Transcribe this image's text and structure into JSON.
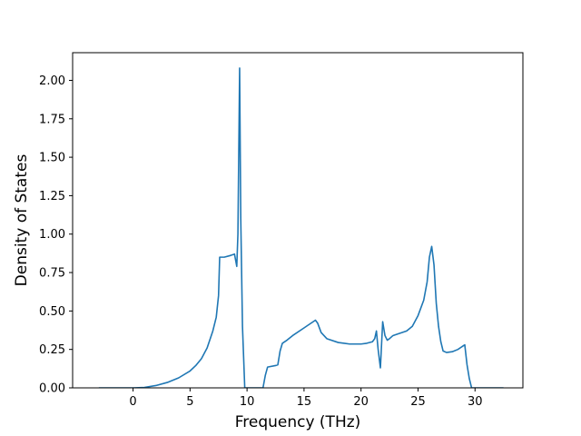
{
  "chart_data": {
    "type": "line",
    "title": "",
    "xlabel": "Frequency (THz)",
    "ylabel": "Density of States",
    "xlim": [
      -5.3,
      34.2
    ],
    "ylim": [
      0.0,
      2.18
    ],
    "xticks": [
      0,
      5,
      10,
      15,
      20,
      25,
      30
    ],
    "xtick_labels": [
      "0",
      "5",
      "10",
      "15",
      "20",
      "25",
      "30"
    ],
    "yticks": [
      0.0,
      0.25,
      0.5,
      0.75,
      1.0,
      1.25,
      1.5,
      1.75,
      2.0
    ],
    "ytick_labels": [
      "0.00",
      "0.25",
      "0.50",
      "0.75",
      "1.00",
      "1.25",
      "1.50",
      "1.75",
      "2.00"
    ],
    "grid": false,
    "legend": "none",
    "series": [
      {
        "color": "#1f77b4",
        "x": [
          -3.0,
          -1.0,
          0.0,
          1.0,
          2.0,
          3.0,
          4.0,
          5.0,
          5.5,
          6.0,
          6.5,
          7.0,
          7.3,
          7.5,
          7.6,
          8.0,
          8.5,
          8.9,
          9.1,
          9.2,
          9.35,
          9.45,
          9.6,
          9.8,
          10.0,
          11.0,
          11.4,
          11.6,
          11.8,
          12.5,
          12.7,
          12.9,
          13.1,
          13.5,
          14.0,
          15.0,
          15.5,
          16.0,
          16.2,
          16.5,
          17.0,
          18.0,
          19.0,
          20.0,
          20.5,
          21.0,
          21.2,
          21.35,
          21.5,
          21.7,
          21.9,
          22.1,
          22.3,
          22.5,
          22.8,
          23.0,
          24.0,
          24.5,
          25.0,
          25.5,
          25.8,
          26.0,
          26.2,
          26.4,
          26.6,
          26.8,
          27.0,
          27.2,
          27.5,
          28.0,
          28.5,
          29.0,
          29.1,
          29.3,
          29.5,
          29.7,
          30.0,
          31.0,
          32.5
        ],
        "y": [
          0.0,
          0.0,
          0.0,
          0.003,
          0.015,
          0.035,
          0.065,
          0.11,
          0.145,
          0.19,
          0.26,
          0.37,
          0.46,
          0.6,
          0.85,
          0.85,
          0.86,
          0.87,
          0.79,
          1.0,
          2.08,
          1.1,
          0.4,
          0.0,
          0.0,
          0.0,
          0.0,
          0.08,
          0.135,
          0.145,
          0.15,
          0.24,
          0.29,
          0.31,
          0.34,
          0.39,
          0.415,
          0.44,
          0.42,
          0.36,
          0.32,
          0.295,
          0.285,
          0.285,
          0.29,
          0.3,
          0.32,
          0.37,
          0.25,
          0.13,
          0.43,
          0.34,
          0.31,
          0.32,
          0.34,
          0.345,
          0.37,
          0.4,
          0.47,
          0.57,
          0.69,
          0.85,
          0.92,
          0.8,
          0.55,
          0.4,
          0.3,
          0.24,
          0.23,
          0.235,
          0.25,
          0.275,
          0.28,
          0.15,
          0.06,
          0.0,
          0.0,
          0.0,
          0.0
        ]
      }
    ]
  }
}
